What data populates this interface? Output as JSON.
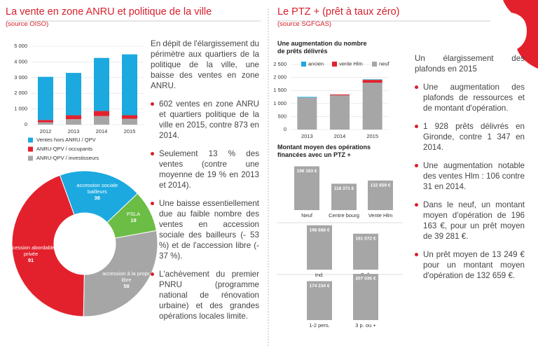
{
  "left": {
    "title": "La vente en zone ANRU et politique de la ville",
    "source": "(source OISO)",
    "chart": {
      "type": "bar",
      "stacked": true,
      "categories": [
        "2012",
        "2013",
        "2014",
        "2015"
      ],
      "series": [
        {
          "name": "ANRU-QPV / investisseurs",
          "color": "#a6a6a6",
          "values": [
            150,
            350,
            550,
            380
          ]
        },
        {
          "name": "ANRU-QPV / occupants",
          "color": "#e3212d",
          "values": [
            150,
            250,
            323,
            222
          ]
        },
        {
          "name": "Ventes hors ANRU / QPV",
          "color": "#1ba9e0",
          "values": [
            2750,
            2700,
            3380,
            3880
          ]
        }
      ],
      "ylim": [
        0,
        5000
      ],
      "yticks": [
        0,
        {
          "value": 1000,
          "label": "1 000"
        },
        {
          "value": 2000,
          "label": "2 000"
        },
        {
          "value": 3000,
          "label": "3 000"
        },
        {
          "value": 4000,
          "label": "4 000"
        },
        {
          "value": 5000,
          "label": "5 000"
        }
      ]
    },
    "pie": {
      "type": "pie",
      "labels": [
        "accession sociale bailleurs",
        "PSLA",
        "accession à la propr. libre",
        "accession abordable privée"
      ],
      "values": [
        38,
        19,
        58,
        91
      ],
      "colors": [
        "#1ba9e0",
        "#6cbd45",
        "#a6a6a6",
        "#e3212d"
      ]
    },
    "intro": "En dépit de l'élargissement du périmètre aux quartiers de la politique de la ville, une baisse des ventes en zone ANRU.",
    "bullets": [
      "602 ventes en zone ANRU et quartiers politique de la ville en 2015, contre 873 en 2014.",
      "Seulement 13 % des ventes (contre une moyenne de 19 % en 2013 et 2014).",
      "Une baisse essentiellement due au faible nombre des ventes en accession sociale des bailleurs (- 53 %) et de l'accession libre (- 37 %).",
      "L'achèvement du premier PNRU (programme national de rénovation urbaine) et des grandes opérations locales limite."
    ]
  },
  "right": {
    "title": "Le PTZ + (prêt à taux zéro)",
    "source": "(source SGFGAS)",
    "chart": {
      "type": "bar",
      "stacked": true,
      "title": "Une augmentation du nombre de prêts délivrés",
      "categories": [
        "2013",
        "2014",
        "2015"
      ],
      "series": [
        {
          "name": "neuf",
          "color": "#a6a6a6",
          "values": [
            1230,
            1316,
            1800
          ]
        },
        {
          "name": "vente Hlm",
          "color": "#e3212d",
          "values": [
            0,
            31,
            106
          ]
        },
        {
          "name": "ancien",
          "color": "#1ba9e0",
          "values": [
            25,
            0,
            22
          ]
        }
      ],
      "ylim": [
        0,
        2500
      ],
      "yticks": [
        0,
        500,
        {
          "value": 1000,
          "label": "1 000"
        },
        {
          "value": 1500,
          "label": "1 500"
        },
        {
          "value": 2000,
          "label": "2 000"
        },
        {
          "value": 2500,
          "label": "2 500"
        }
      ]
    },
    "amount": {
      "title": "Montant moyen des opérations financées avec un PTZ +",
      "charts": [
        {
          "type": "bar",
          "color": "#a6a6a6",
          "categories": [
            "Neuf",
            "Centre bourg",
            "Vente Hlm"
          ],
          "values": [
            196163,
            118371,
            132659
          ],
          "value_labels": [
            "196 163 €",
            "118 371 €",
            "132 659 €"
          ]
        },
        {
          "type": "bar",
          "color": "#a6a6a6",
          "categories": [
            "Ind.",
            "Coll."
          ],
          "values": [
            198688,
            161072
          ],
          "value_labels": [
            "198 688 €",
            "161 072 €"
          ]
        },
        {
          "type": "bar",
          "color": "#a6a6a6",
          "categories": [
            "1-2 pers.",
            "3 p. ou +"
          ],
          "values": [
            174234,
            207036
          ],
          "value_labels": [
            "174 234 €",
            "207 036 €"
          ]
        }
      ]
    },
    "intro": "Un élargissement des plafonds en 2015",
    "bullets": [
      "Une augmentation des plafonds de ressources et de montant d'opération.",
      "1 928 prêts délivrés en Gironde, contre 1 347 en 2014.",
      "Une augmentation notable des ventes Hlm : 106 contre 31 en 2014.",
      "Dans le neuf, un montant moyen d'opération de 196 163 €, pour un prêt moyen de 39 281 €.",
      "Un prêt moyen de 13 249 € pour un montant moyen d'opération de 132 659 €."
    ]
  }
}
